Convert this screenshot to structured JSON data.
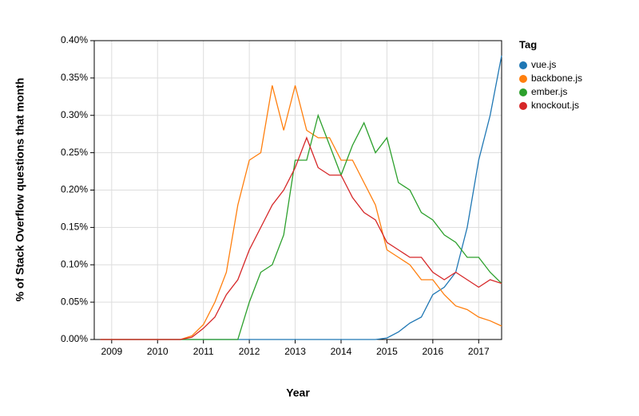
{
  "chart_data": {
    "type": "line",
    "x_label": "Year",
    "y_label": "% of Stack Overflow questions that month",
    "legend_title": "Tag",
    "legend_position": "right",
    "grid": true,
    "x": [
      2008.75,
      2009,
      2009.25,
      2009.5,
      2009.75,
      2010,
      2010.25,
      2010.5,
      2010.75,
      2011,
      2011.25,
      2011.5,
      2011.75,
      2012,
      2012.25,
      2012.5,
      2012.75,
      2013,
      2013.25,
      2013.5,
      2013.75,
      2014,
      2014.25,
      2014.5,
      2014.75,
      2015,
      2015.25,
      2015.5,
      2015.75,
      2016,
      2016.25,
      2016.5,
      2016.75,
      2017,
      2017.25,
      2017.5
    ],
    "xlim": [
      2008.62,
      2017.5
    ],
    "xticks": [
      2009,
      2010,
      2011,
      2012,
      2013,
      2014,
      2015,
      2016,
      2017
    ],
    "ylim": [
      0,
      0.4
    ],
    "yticks": [
      {
        "value": 0,
        "label": "0.00%"
      },
      {
        "value": 0.05,
        "label": "0.05%"
      },
      {
        "value": 0.1,
        "label": "0.10%"
      },
      {
        "value": 0.15,
        "label": "0.15%"
      },
      {
        "value": 0.2,
        "label": "0.20%"
      },
      {
        "value": 0.25,
        "label": "0.25%"
      },
      {
        "value": 0.3,
        "label": "0.30%"
      },
      {
        "value": 0.35,
        "label": "0.35%"
      },
      {
        "value": 0.4,
        "label": "0.40%"
      }
    ],
    "series": [
      {
        "name": "vue.js",
        "color": "#1f77b4",
        "values": [
          0,
          0,
          0,
          0,
          0,
          0,
          0,
          0,
          0,
          0,
          0,
          0,
          0,
          0,
          0,
          0,
          0,
          0,
          0,
          0,
          0,
          0,
          0,
          0,
          0,
          0.002,
          0.01,
          0.022,
          0.03,
          0.06,
          0.07,
          0.09,
          0.15,
          0.24,
          0.3,
          0.38
        ]
      },
      {
        "name": "backbone.js",
        "color": "#ff7f0e",
        "values": [
          0,
          0,
          0,
          0,
          0,
          0,
          0,
          0,
          0.005,
          0.02,
          0.05,
          0.09,
          0.18,
          0.24,
          0.25,
          0.34,
          0.28,
          0.34,
          0.28,
          0.27,
          0.27,
          0.24,
          0.24,
          0.21,
          0.18,
          0.12,
          0.11,
          0.1,
          0.08,
          0.08,
          0.06,
          0.045,
          0.04,
          0.03,
          0.025,
          0.018
        ]
      },
      {
        "name": "ember.js",
        "color": "#2ca02c",
        "values": [
          0,
          0,
          0,
          0,
          0,
          0,
          0,
          0,
          0,
          0,
          0,
          0,
          0,
          0.05,
          0.09,
          0.1,
          0.14,
          0.24,
          0.24,
          0.3,
          0.26,
          0.22,
          0.26,
          0.29,
          0.25,
          0.27,
          0.21,
          0.2,
          0.17,
          0.16,
          0.14,
          0.13,
          0.11,
          0.11,
          0.09,
          0.075
        ]
      },
      {
        "name": "knockout.js",
        "color": "#d62728",
        "values": [
          0,
          0,
          0,
          0,
          0,
          0,
          0,
          0,
          0.003,
          0.015,
          0.03,
          0.06,
          0.08,
          0.12,
          0.15,
          0.18,
          0.2,
          0.23,
          0.27,
          0.23,
          0.22,
          0.22,
          0.19,
          0.17,
          0.16,
          0.13,
          0.12,
          0.11,
          0.11,
          0.09,
          0.08,
          0.09,
          0.08,
          0.07,
          0.08,
          0.075
        ]
      }
    ]
  }
}
